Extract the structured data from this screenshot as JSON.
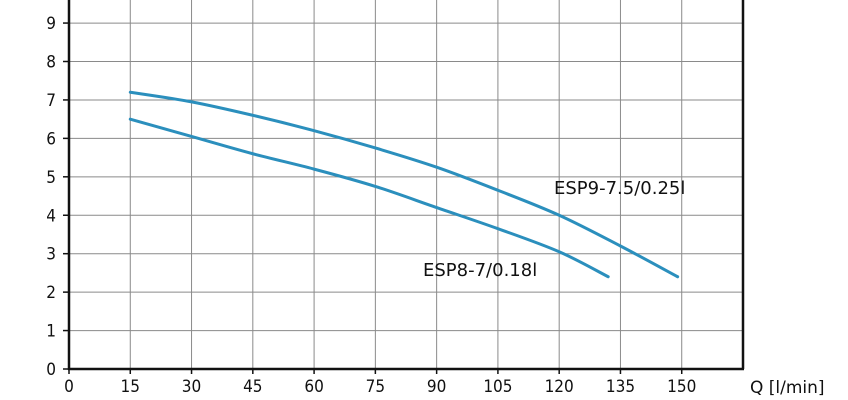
{
  "chart_data": {
    "type": "line",
    "title": "",
    "xlabel": "Q [l/min]",
    "ylabel": "",
    "xlim": [
      0,
      165
    ],
    "ylim": [
      0,
      9.6
    ],
    "x_ticks": [
      0,
      15,
      30,
      45,
      60,
      75,
      90,
      105,
      120,
      135,
      150
    ],
    "y_ticks": [
      0,
      1,
      2,
      3,
      4,
      5,
      6,
      7,
      8,
      9
    ],
    "grid": true,
    "line_color": "#2b8fbd",
    "series": [
      {
        "name": "ESP9-7.5/0.25l",
        "x": [
          15,
          30,
          45,
          60,
          75,
          90,
          105,
          120,
          135,
          149
        ],
        "y": [
          7.2,
          6.95,
          6.6,
          6.2,
          5.75,
          5.25,
          4.65,
          4.0,
          3.2,
          2.4
        ]
      },
      {
        "name": "ESP8-7/0.18l",
        "x": [
          15,
          30,
          45,
          60,
          75,
          90,
          105,
          120,
          132
        ],
        "y": [
          6.5,
          6.05,
          5.6,
          5.2,
          4.75,
          4.2,
          3.65,
          3.05,
          2.4
        ]
      }
    ]
  }
}
